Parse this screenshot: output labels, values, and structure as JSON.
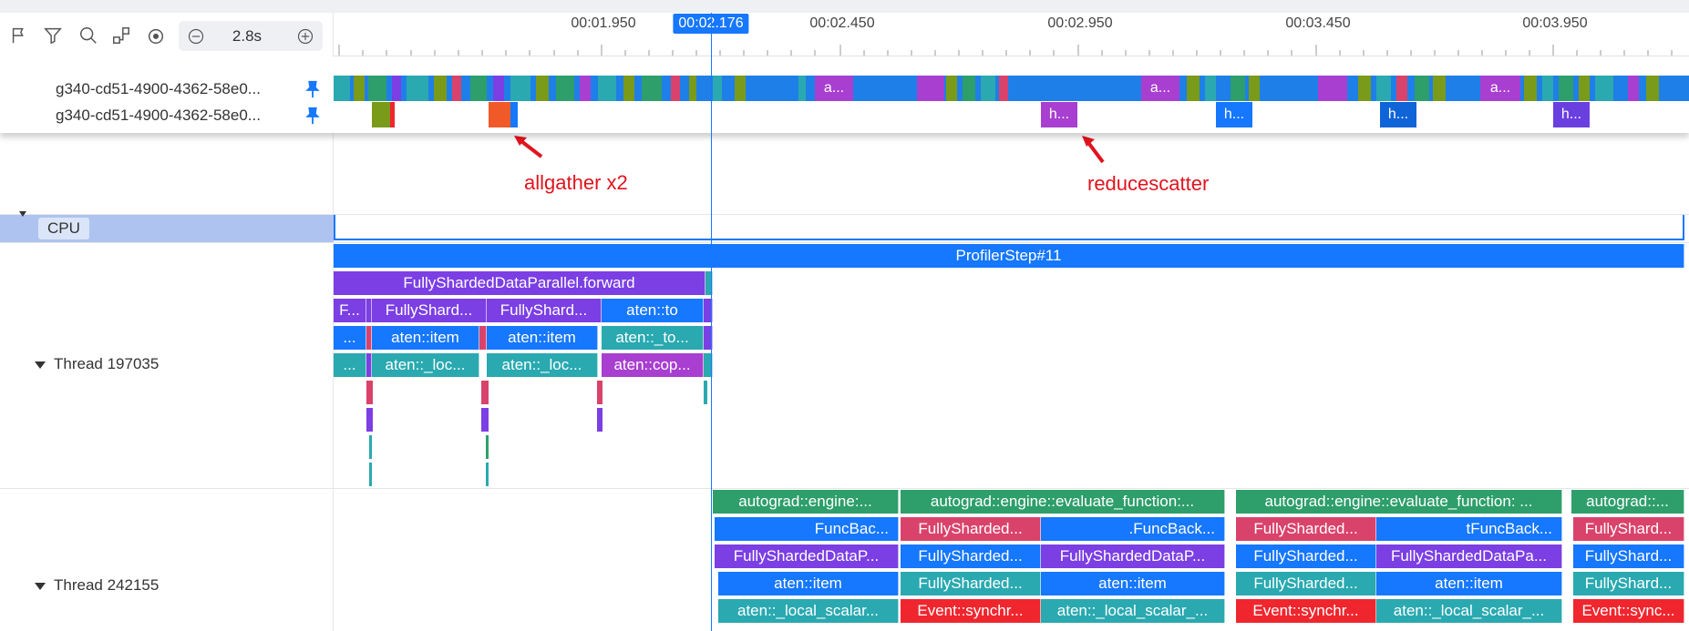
{
  "toolbar": {
    "icons": [
      "flag-icon",
      "filter-icon",
      "search-icon",
      "layout-icon",
      "target-icon"
    ],
    "zoom_value": "2.8s",
    "zoom_out_icon": "minus-circle-icon",
    "zoom_in_icon": "plus-circle-icon"
  },
  "ruler": {
    "ticks": [
      "00:01.950",
      "00:02.450",
      "00:02.950",
      "00:03.450",
      "00:03.950"
    ],
    "cursor_time": "00:02.176"
  },
  "pinned": {
    "rows": [
      {
        "label": "g340-cd51-4900-4362-58e0..."
      },
      {
        "label": "g340-cd51-4900-4362-58e0..."
      }
    ],
    "row1_labels": [
      "a...",
      "a...",
      "a..."
    ],
    "row2_labels": [
      "h...",
      "h...",
      "h...",
      "h..."
    ]
  },
  "annotations": {
    "allgather": "allgather x2",
    "reducescatter": "reducescatter"
  },
  "cpu": {
    "label": "CPU"
  },
  "threads": [
    {
      "label": "Thread 197035",
      "profiler_step": "ProfilerStep#11",
      "forward": "FullyShardedDataParallel.forward",
      "level2": [
        "F...",
        "FullyShard...",
        "FullyShard...",
        "aten::to"
      ],
      "level3": [
        "...",
        "aten::item",
        "aten::item",
        "aten::_to..."
      ],
      "level4": [
        "...",
        "aten::_loc...",
        "aten::_loc...",
        "aten::cop..."
      ]
    },
    {
      "label": "Thread 242155",
      "level1": [
        "autograd::engine:...",
        "autograd::engine::evaluate_function:...",
        "autograd::engine::evaluate_function: ...",
        "autograd::..."
      ],
      "level2": [
        "FuncBac...",
        "FullySharded...",
        ".FuncBack...",
        "FullySharded...",
        "tFuncBack...",
        "FullyShard..."
      ],
      "level3": [
        "FullyShardedDataP...",
        "FullySharded...",
        "FullyShardedDataP...",
        "FullySharded...",
        "FullyShardedDataPa...",
        "FullyShard..."
      ],
      "level4": [
        "aten::item",
        "FullySharded...",
        "aten::item",
        "FullySharded...",
        "aten::item",
        "FullyShard..."
      ],
      "level5": [
        "aten::_local_scalar...",
        "Event::synchr...",
        "aten::_local_scalar_...",
        "Event::synchr...",
        "aten::_local_scalar_...",
        "Event::sync..."
      ]
    }
  ],
  "colors": {
    "accent": "#1677ff",
    "purple": "#7b3fe4",
    "green": "#2e9e6b",
    "teal": "#2aa9b0",
    "crimson": "#d9436b",
    "red": "#f0262e",
    "magenta": "#a83fd0",
    "annotation": "#e0141e"
  }
}
